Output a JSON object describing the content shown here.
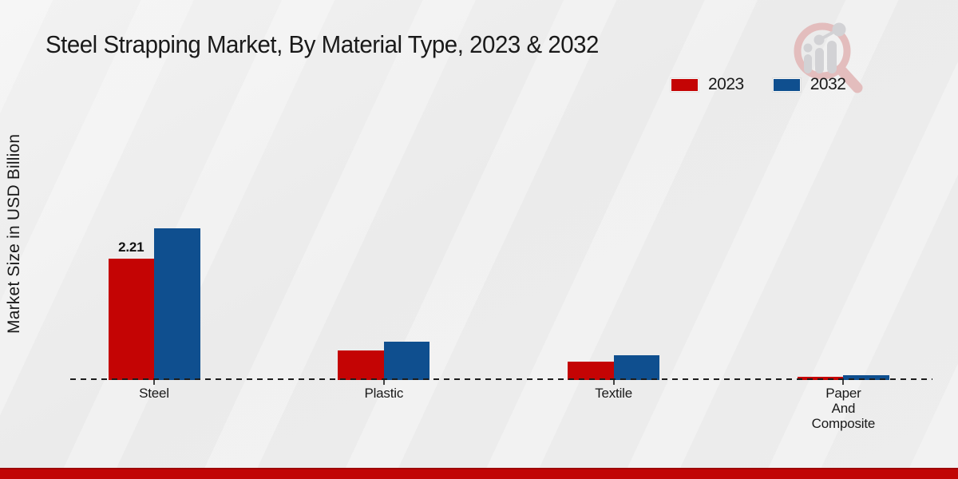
{
  "title": "Steel Strapping Market, By Material Type, 2023 & 2032",
  "y_axis_label": "Market Size in USD Billion",
  "legend": [
    {
      "label": "2023",
      "color": "#c40404"
    },
    {
      "label": "2032",
      "color": "#0f4f8f"
    }
  ],
  "watermark": {
    "name": "market-research-magnifier-logo",
    "ring_color": "#e3bdbd",
    "bar_color": "#d2d2d5"
  },
  "footer": {
    "color": "#c10505"
  },
  "chart_data": {
    "type": "bar",
    "categories": [
      "Steel",
      "Plastic",
      "Textile",
      "Paper\nAnd\nComposite"
    ],
    "series": [
      {
        "name": "2023",
        "color": "#c40404",
        "values": [
          2.21,
          0.53,
          0.33,
          0.06
        ],
        "point_labels": [
          "2.21",
          "",
          "",
          ""
        ]
      },
      {
        "name": "2032",
        "color": "#0f4f8f",
        "values": [
          2.76,
          0.7,
          0.45,
          0.08
        ],
        "point_labels": [
          "",
          "",
          "",
          ""
        ]
      }
    ],
    "title": "Steel Strapping Market, By Material Type, 2023 & 2032",
    "xlabel": "",
    "ylabel": "Market Size in USD Billion",
    "ylim": [
      0,
      3.2
    ],
    "grid": false,
    "legend_position": "top-right",
    "x_axis_style": "dashed-baseline",
    "y_ticks_visible": false
  }
}
